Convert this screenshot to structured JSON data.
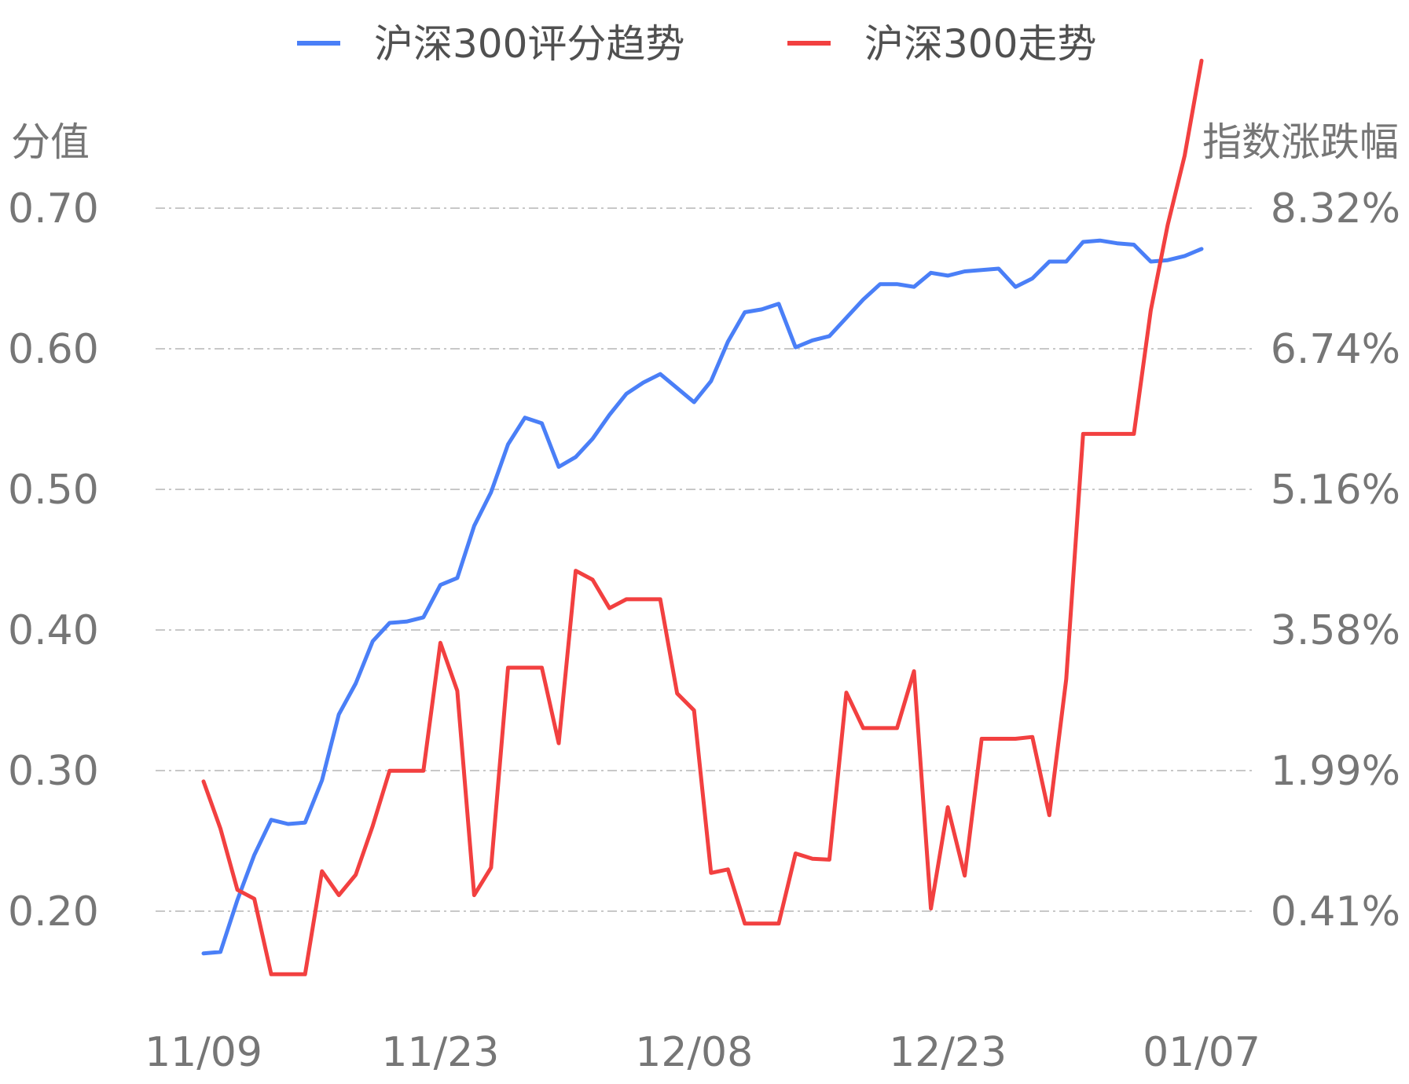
{
  "chart_data": {
    "type": "line",
    "legend_position": "top-center",
    "grid": true,
    "y_left_label": "分值",
    "y_right_label": "指数涨跌幅",
    "y_left_ticks": [
      "0.70",
      "0.60",
      "0.50",
      "0.40",
      "0.30",
      "0.20"
    ],
    "y_right_ticks": [
      "8.32%",
      "6.74%",
      "5.16%",
      "3.58%",
      "1.99%",
      "0.41%"
    ],
    "y_left_range": [
      0.2,
      0.7
    ],
    "y_right_range": [
      0.41,
      8.32
    ],
    "x_tick_labels": [
      "11/09",
      "11/23",
      "12/08",
      "12/23",
      "01/07"
    ],
    "x_tick_index": [
      0,
      14,
      29,
      44,
      59
    ],
    "series": [
      {
        "name": "沪深300评分趋势",
        "axis": "left",
        "color": "#4a7ff7",
        "values": [
          0.17,
          0.171,
          0.208,
          0.24,
          0.265,
          0.262,
          0.263,
          0.293,
          0.34,
          0.362,
          0.392,
          0.405,
          0.406,
          0.409,
          0.432,
          0.437,
          0.474,
          0.498,
          0.532,
          0.551,
          0.547,
          0.516,
          0.523,
          0.536,
          0.553,
          0.568,
          0.576,
          0.582,
          0.572,
          0.562,
          0.577,
          0.605,
          0.626,
          0.628,
          0.632,
          0.601,
          0.606,
          0.609,
          0.622,
          0.635,
          0.646,
          0.646,
          0.644,
          0.654,
          0.652,
          0.655,
          0.656,
          0.657,
          0.644,
          0.65,
          0.662,
          0.662,
          0.676,
          0.677,
          0.675,
          0.674,
          0.662,
          0.663,
          0.666,
          0.671
        ]
      },
      {
        "name": "沪深300走势",
        "axis": "right",
        "color": "#f24040",
        "values": [
          1.87,
          1.34,
          0.65,
          0.55,
          -0.3,
          -0.3,
          -0.3,
          0.86,
          0.59,
          0.82,
          1.37,
          1.99,
          1.99,
          1.99,
          3.43,
          2.89,
          0.59,
          0.9,
          3.15,
          3.15,
          3.15,
          2.3,
          4.24,
          4.14,
          3.82,
          3.92,
          3.92,
          3.92,
          2.86,
          2.67,
          0.84,
          0.88,
          0.27,
          0.27,
          0.27,
          1.06,
          1.0,
          0.99,
          2.87,
          2.47,
          2.47,
          2.47,
          3.11,
          0.44,
          1.58,
          0.81,
          2.35,
          2.35,
          2.35,
          2.37,
          1.49,
          3.02,
          5.78,
          5.78,
          5.78,
          5.78,
          7.17,
          8.13,
          8.91,
          9.98
        ]
      }
    ]
  }
}
